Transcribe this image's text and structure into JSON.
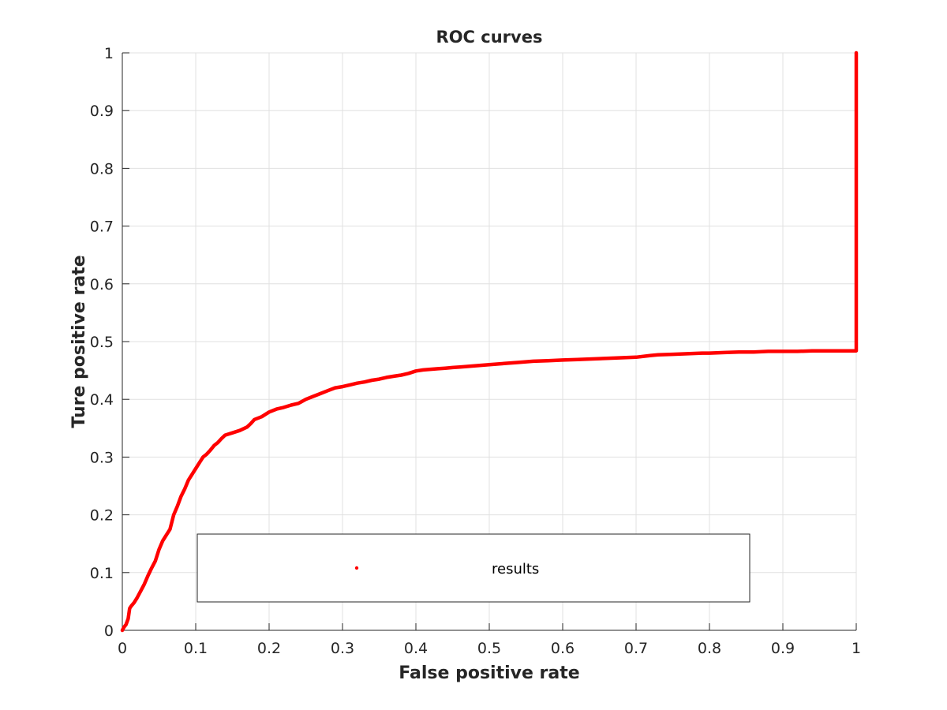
{
  "chart_data": {
    "type": "line",
    "title": "ROC curves",
    "xlabel": "False positive rate",
    "ylabel": "Ture positive rate",
    "xlim": [
      0,
      1
    ],
    "ylim": [
      0,
      1
    ],
    "xticks": [
      0,
      0.1,
      0.2,
      0.3,
      0.4,
      0.5,
      0.6,
      0.7,
      0.8,
      0.9,
      1
    ],
    "xtick_labels": [
      "0",
      "0.1",
      "0.2",
      "0.3",
      "0.4",
      "0.5",
      "0.6",
      "0.7",
      "0.8",
      "0.9",
      "1"
    ],
    "yticks": [
      0,
      0.1,
      0.2,
      0.3,
      0.4,
      0.5,
      0.6,
      0.7,
      0.8,
      0.9,
      1
    ],
    "ytick_labels": [
      "0",
      "0.1",
      "0.2",
      "0.3",
      "0.4",
      "0.5",
      "0.6",
      "0.7",
      "0.8",
      "0.9",
      "1"
    ],
    "grid": true,
    "legend": {
      "position": "bottom-center",
      "entries": [
        "results"
      ]
    },
    "series": [
      {
        "name": "results",
        "color": "#ff0000",
        "x": [
          0,
          0.002,
          0.005,
          0.008,
          0.01,
          0.012,
          0.016,
          0.02,
          0.025,
          0.03,
          0.035,
          0.04,
          0.045,
          0.05,
          0.055,
          0.06,
          0.065,
          0.07,
          0.075,
          0.08,
          0.085,
          0.09,
          0.095,
          0.1,
          0.105,
          0.11,
          0.115,
          0.12,
          0.125,
          0.13,
          0.135,
          0.14,
          0.15,
          0.16,
          0.17,
          0.175,
          0.18,
          0.19,
          0.2,
          0.21,
          0.22,
          0.23,
          0.24,
          0.25,
          0.26,
          0.27,
          0.28,
          0.29,
          0.3,
          0.31,
          0.32,
          0.33,
          0.34,
          0.35,
          0.36,
          0.37,
          0.38,
          0.39,
          0.4,
          0.41,
          0.42,
          0.43,
          0.44,
          0.45,
          0.46,
          0.47,
          0.48,
          0.49,
          0.5,
          0.52,
          0.54,
          0.56,
          0.58,
          0.6,
          0.62,
          0.64,
          0.66,
          0.68,
          0.7,
          0.72,
          0.73,
          0.75,
          0.77,
          0.79,
          0.8,
          0.82,
          0.84,
          0.86,
          0.88,
          0.9,
          0.92,
          0.94,
          0.96,
          0.98,
          1.0,
          1.0
        ],
        "y": [
          0,
          0.005,
          0.01,
          0.02,
          0.038,
          0.042,
          0.048,
          0.056,
          0.068,
          0.08,
          0.095,
          0.108,
          0.12,
          0.14,
          0.155,
          0.165,
          0.175,
          0.2,
          0.215,
          0.232,
          0.245,
          0.26,
          0.27,
          0.28,
          0.29,
          0.3,
          0.305,
          0.312,
          0.32,
          0.325,
          0.332,
          0.338,
          0.342,
          0.346,
          0.352,
          0.358,
          0.365,
          0.37,
          0.378,
          0.383,
          0.386,
          0.39,
          0.393,
          0.4,
          0.405,
          0.41,
          0.415,
          0.42,
          0.422,
          0.425,
          0.428,
          0.43,
          0.433,
          0.435,
          0.438,
          0.44,
          0.442,
          0.445,
          0.449,
          0.451,
          0.452,
          0.453,
          0.454,
          0.455,
          0.456,
          0.457,
          0.458,
          0.459,
          0.46,
          0.462,
          0.464,
          0.466,
          0.467,
          0.468,
          0.469,
          0.47,
          0.471,
          0.472,
          0.473,
          0.476,
          0.477,
          0.478,
          0.479,
          0.48,
          0.48,
          0.481,
          0.482,
          0.482,
          0.483,
          0.483,
          0.483,
          0.484,
          0.484,
          0.484,
          0.484,
          1.0
        ]
      }
    ]
  }
}
